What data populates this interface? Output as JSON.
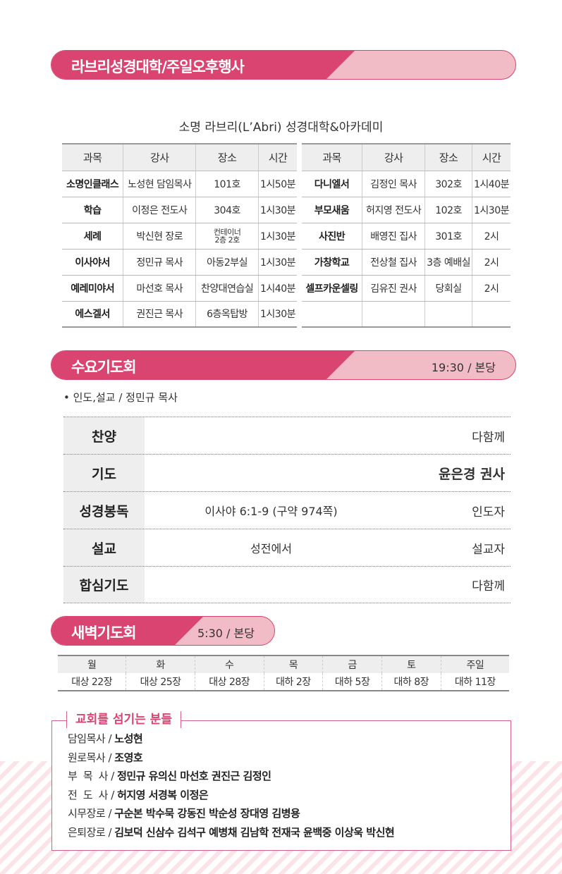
{
  "colors": {
    "accent": "#d94470",
    "accent_light": "#f1bcc6"
  },
  "sections": {
    "labri": {
      "title": "라브리성경대학/주일오후행사",
      "subtitle": "소명 라브리(L’Abri) 성경대학&아카데미",
      "headers": [
        "과목",
        "강사",
        "장소",
        "시간"
      ],
      "left_rows": [
        [
          "소명인클래스",
          "노성현 담임목사",
          "101호",
          "1시50분"
        ],
        [
          "학습",
          "이정은 전도사",
          "304호",
          "1시30분"
        ],
        [
          "세례",
          "박신현 장로",
          "컨테이너 2층 2호",
          "1시30분"
        ],
        [
          "이사야서",
          "정민규 목사",
          "아동2부실",
          "1시30분"
        ],
        [
          "예레미야서",
          "마선호 목사",
          "찬양대연습실",
          "1시40분"
        ],
        [
          "에스겔서",
          "권진근 목사",
          "6층옥탑방",
          "1시30분"
        ]
      ],
      "right_rows": [
        [
          "다니엘서",
          "김정인 목사",
          "302호",
          "1시40분"
        ],
        [
          "부모새움",
          "허지영 전도사",
          "102호",
          "1시30분"
        ],
        [
          "사진반",
          "배영진 집사",
          "301호",
          "2시"
        ],
        [
          "가창학교",
          "전상철 집사",
          "3층 예배실",
          "2시"
        ],
        [
          "셀프카운셀링",
          "김유진 권사",
          "당회실",
          "2시"
        ],
        [
          "",
          "",
          "",
          ""
        ]
      ]
    },
    "wednesday": {
      "title": "수요기도회",
      "time": "19:30 / 본당",
      "leader": "• 인도,설교 / 정민규 목사",
      "rows": [
        {
          "label": "찬양",
          "middle": "",
          "right": "다함께"
        },
        {
          "label": "기도",
          "middle": "",
          "right": "윤은경 권사"
        },
        {
          "label": "성경봉독",
          "middle": "이사야 6:1-9 (구약 974쪽)",
          "right": "인도자"
        },
        {
          "label": "설교",
          "middle": "성전에서",
          "right": "설교자"
        },
        {
          "label": "합심기도",
          "middle": "",
          "right": "다함께"
        }
      ]
    },
    "dawn": {
      "title": "새벽기도회",
      "time": "5:30 / 본당",
      "days": [
        "월",
        "화",
        "수",
        "목",
        "금",
        "토",
        "주일"
      ],
      "readings": [
        "대상 22장",
        "대상 25장",
        "대상 28장",
        "대하 2장",
        "대하 5장",
        "대하 8장",
        "대하 11장"
      ]
    },
    "staff": {
      "title": "교회를 섬기는 분들",
      "lines": [
        {
          "role": "담임목사 / ",
          "names": "노성현"
        },
        {
          "role": "원로목사 / ",
          "names": "조영호"
        },
        {
          "role": "부  목  사 / ",
          "names": "정민규 유의신 마선호 권진근 김정인"
        },
        {
          "role": "전  도  사 / ",
          "names": "허지영 서경복 이정은"
        },
        {
          "role": "시무장로 / ",
          "names": "구순본 박수묵 강동진 박순성 장대영 김병용"
        },
        {
          "role": "은퇴장로 / ",
          "names": "김보덕 신삼수 김석구 예병채 김남학 전재국 윤백중 이상욱 박신현"
        }
      ]
    }
  }
}
